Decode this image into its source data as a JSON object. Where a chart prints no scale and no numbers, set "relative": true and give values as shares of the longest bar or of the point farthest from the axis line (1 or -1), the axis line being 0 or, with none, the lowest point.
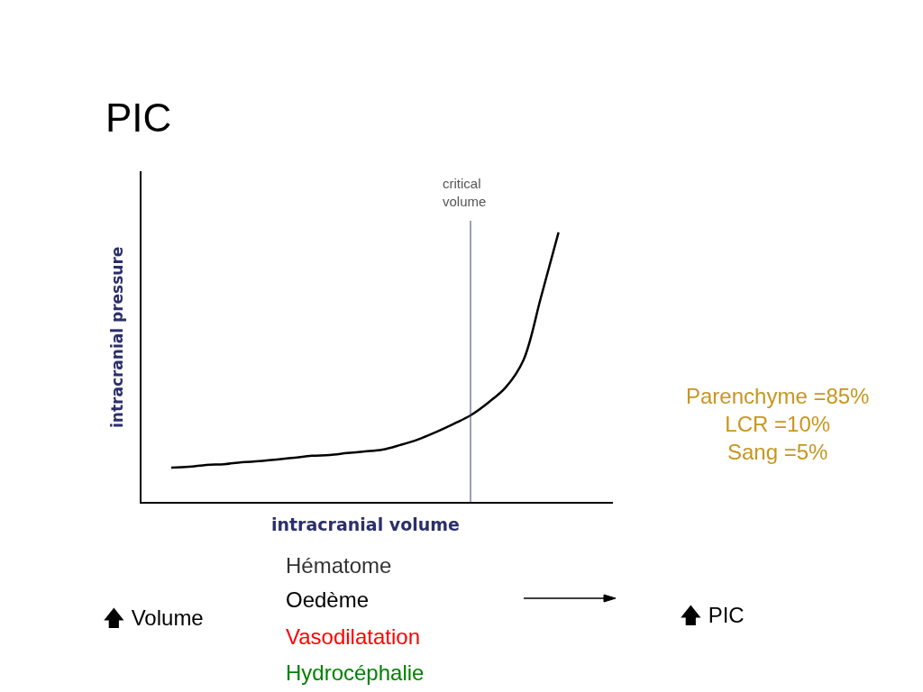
{
  "chart_data": {
    "type": "line",
    "title": "PIC",
    "xlabel": "intracranial volume",
    "ylabel": "intracranial pressure",
    "relative": true,
    "categories": [
      null,
      null,
      null,
      null,
      null,
      null,
      null,
      null,
      null,
      null,
      null,
      null,
      null,
      null,
      null,
      null,
      null,
      null,
      null,
      null,
      null,
      null,
      null
    ],
    "series": [
      {
        "color": "#000000",
        "values": [
          0.127,
          0.13,
          0.137,
          0.14,
          0.147,
          0.151,
          0.157,
          0.164,
          0.171,
          0.174,
          0.181,
          0.187,
          0.194,
          0.211,
          0.231,
          0.258,
          0.288,
          0.321,
          0.368,
          0.425,
          0.525,
          0.759,
          1
        ]
      }
    ],
    "annotations": [
      "critical\nvolume",
      "Parenchyme =85%\nLCR =10%\nSang =5%",
      "Hématome",
      "Oedème",
      "Vasodilatation",
      "Hydrocéphalie",
      "🡅 Volume",
      "🡅 PIC"
    ],
    "legend": false,
    "marker": "none",
    "line_style": "solid"
  }
}
